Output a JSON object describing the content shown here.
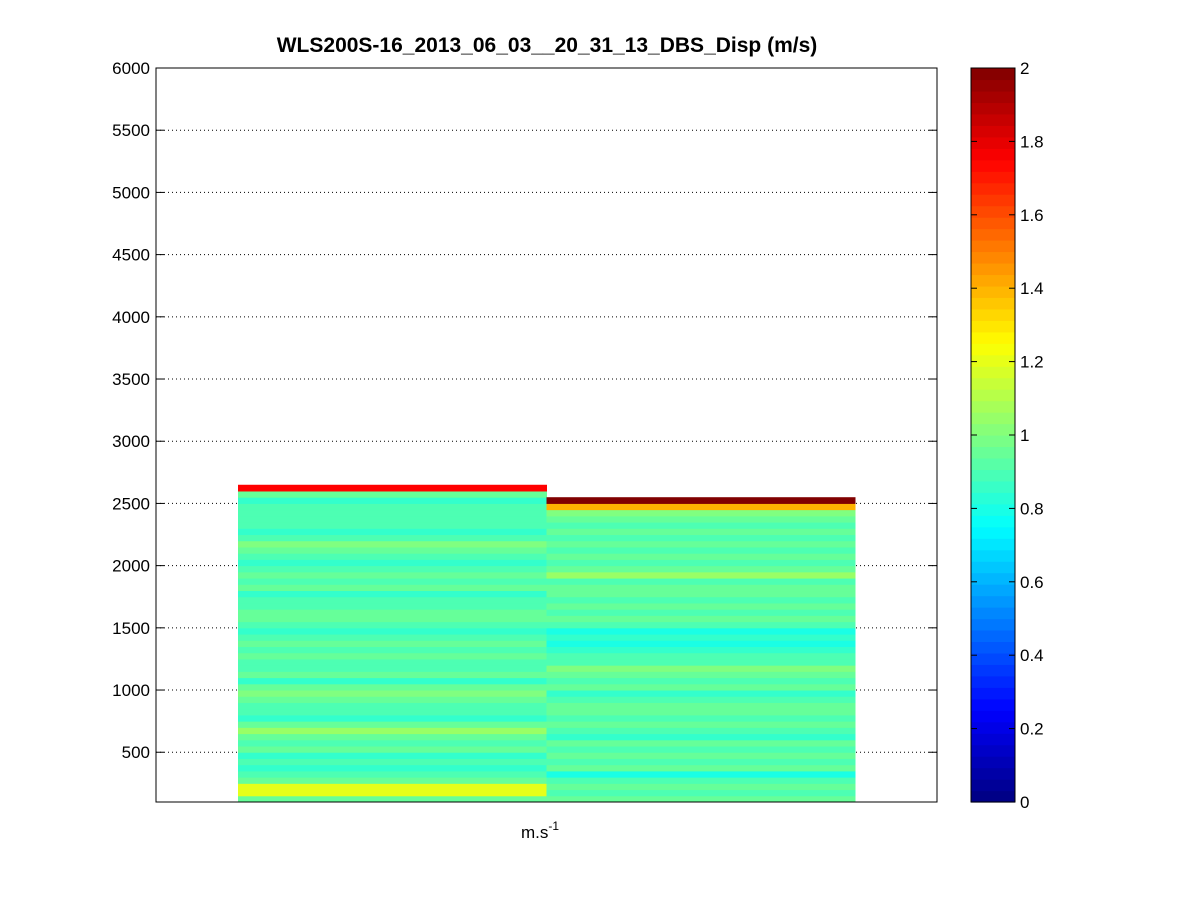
{
  "chart_data": {
    "type": "heatmap",
    "title": "WLS200S-16_2013_06_03__20_31_13_DBS_Disp (m/s)",
    "xlabel": "m.s",
    "xlabel_superscript": "-1",
    "ylabel": "",
    "ylim": [
      100,
      6000
    ],
    "yticks": [
      500,
      1000,
      1500,
      2000,
      2500,
      3000,
      3500,
      4000,
      4500,
      5000,
      5500,
      6000
    ],
    "grid": true,
    "colormap": "jet",
    "colorbar": {
      "range": [
        0,
        2
      ],
      "ticks": [
        0,
        0.2,
        0.4,
        0.6,
        0.8,
        1,
        1.2,
        1.4,
        1.6,
        1.8,
        2
      ],
      "tick_labels": [
        "0",
        "0.2",
        "0.4",
        "0.6",
        "0.8",
        "1",
        "1.2",
        "1.4",
        "1.6",
        "1.8",
        "2"
      ]
    },
    "bin_height": 50,
    "columns": [
      {
        "bottom": 100,
        "values": [
          0.95,
          1.2,
          1.2,
          0.95,
          0.9,
          0.85,
          0.9,
          0.85,
          0.95,
          0.9,
          0.95,
          1.05,
          0.95,
          0.85,
          0.9,
          0.9,
          0.95,
          1.0,
          0.95,
          0.85,
          0.95,
          0.9,
          0.9,
          0.95,
          0.9,
          0.95,
          0.9,
          0.85,
          0.9,
          0.95,
          0.95,
          0.9,
          0.9,
          0.85,
          0.95,
          0.9,
          0.95,
          0.9,
          0.85,
          0.9,
          0.95,
          1.0,
          0.9,
          0.85,
          0.9,
          0.9,
          0.9,
          0.9,
          0.85,
          0.95,
          1.75
        ]
      },
      {
        "bottom": 100,
        "values": [
          0.95,
          0.9,
          0.95,
          0.9,
          0.8,
          0.95,
          0.9,
          0.95,
          0.9,
          0.95,
          0.85,
          0.9,
          0.95,
          0.9,
          0.95,
          0.95,
          0.9,
          0.85,
          0.95,
          0.9,
          0.95,
          1.0,
          0.9,
          0.9,
          0.85,
          0.8,
          0.85,
          0.8,
          0.9,
          0.95,
          0.9,
          0.95,
          0.9,
          0.95,
          0.95,
          0.9,
          1.05,
          0.95,
          0.9,
          0.95,
          0.9,
          0.95,
          0.9,
          0.95,
          0.9,
          0.95,
          1.0,
          1.4,
          2.0
        ]
      }
    ]
  }
}
